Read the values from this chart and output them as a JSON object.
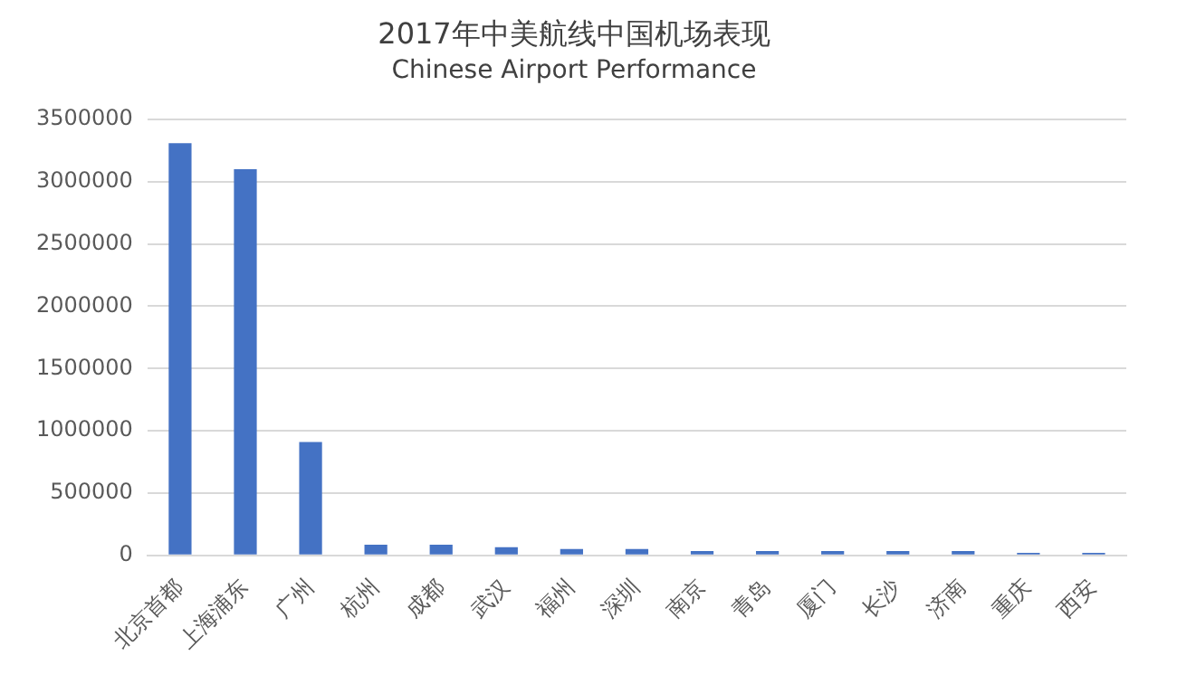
{
  "chart_data": {
    "type": "bar",
    "title": "2017年中美航线中国机场表现",
    "subtitle": "Chinese Airport Performance",
    "categories": [
      "北京首都",
      "上海浦东",
      "广州",
      "杭州",
      "成都",
      "武汉",
      "福州",
      "深圳",
      "南京",
      "青岛",
      "厦门",
      "长沙",
      "济南",
      "重庆",
      "西安"
    ],
    "values": [
      3310000,
      3100000,
      910000,
      85000,
      85000,
      65000,
      50000,
      50000,
      35000,
      35000,
      35000,
      35000,
      35000,
      20000,
      20000
    ],
    "color": "#4472c4",
    "ylim": [
      0,
      3500000
    ],
    "yticks": [
      0,
      500000,
      1000000,
      1500000,
      2000000,
      2500000,
      3000000,
      3500000
    ],
    "grid": "y",
    "legend": false
  }
}
